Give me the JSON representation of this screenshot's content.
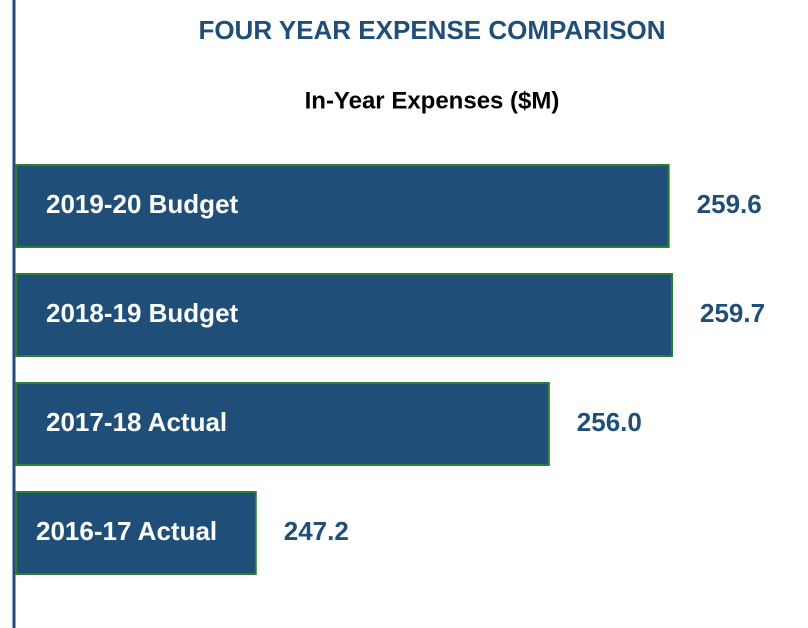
{
  "chart_data": {
    "type": "bar",
    "orientation": "horizontal",
    "title": "FOUR YEAR EXPENSE COMPARISON",
    "subtitle": "In-Year Expenses ($M)",
    "categories": [
      "2019-20 Budget",
      "2018-19 Budget",
      "2017-18 Actual",
      "2016-17 Actual"
    ],
    "values": [
      259.6,
      259.7,
      256.0,
      247.2
    ],
    "value_labels": [
      "259.6",
      "259.7",
      "256.0",
      "247.2"
    ],
    "color": "#1f4e79",
    "xlim": [
      240,
      260
    ]
  }
}
